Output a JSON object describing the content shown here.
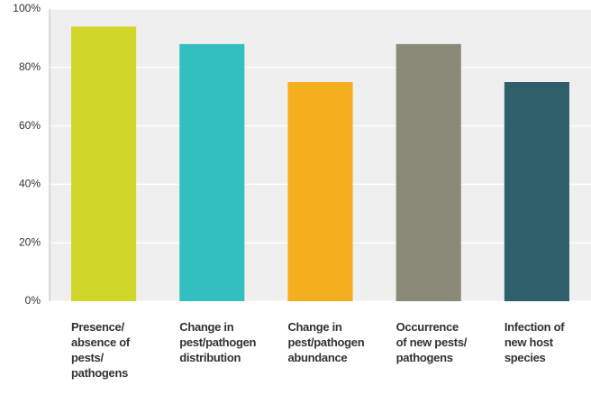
{
  "chart_data": {
    "type": "bar",
    "categories": [
      "Presence/\nabsence of\npests/\npathogens",
      "Change in\npest/pathogen\ndistribution",
      "Change in\npest/pathogen\nabundance",
      "Occurrence\nof new pests/\npathogens",
      "Infection of\nnew host\nspecies"
    ],
    "values": [
      94,
      88,
      75,
      88,
      75
    ],
    "colors": [
      "#d0d62a",
      "#33bfbf",
      "#f5ae1e",
      "#8a8a78",
      "#2e5f6b"
    ],
    "ylim": [
      0,
      100
    ],
    "yticks": [
      {
        "value": 0,
        "label": "0%"
      },
      {
        "value": 20,
        "label": "20%"
      },
      {
        "value": 40,
        "label": "40%"
      },
      {
        "value": 60,
        "label": "60%"
      },
      {
        "value": 80,
        "label": "80%"
      },
      {
        "value": 100,
        "label": "100%"
      }
    ],
    "grid": true
  }
}
